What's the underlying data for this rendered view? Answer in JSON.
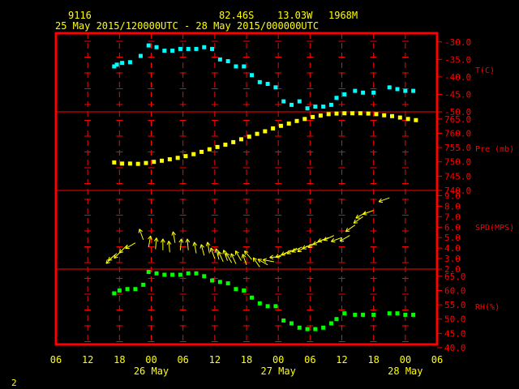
{
  "header": {
    "station": "9116",
    "lat": "82.46S",
    "lon": "13.03W",
    "elev": "1968M",
    "range": "25 May 2015/120000UTC - 28 May 2015/000000UTC"
  },
  "footer": {
    "page": "2"
  },
  "colors": {
    "frame": "#ff0000",
    "grid": "#ff0000",
    "text": "#ffff00",
    "temp": "#00ffff",
    "pres": "#ffff00",
    "wind": "#ffff00",
    "rh": "#00ff00"
  },
  "chart_data": {
    "type": "scatter",
    "x_axis": {
      "unit": "hours since 25 May 06 UTC",
      "range": [
        0,
        72
      ],
      "tick_labels": [
        "06",
        "12",
        "18",
        "00",
        "06",
        "12",
        "18",
        "00",
        "06",
        "12",
        "18",
        "00",
        "06"
      ],
      "day_labels": [
        {
          "label": "26 May",
          "at": 18
        },
        {
          "label": "27 May",
          "at": 42
        },
        {
          "label": "28 May",
          "at": 66
        }
      ]
    },
    "panels": [
      {
        "name": "T(C)",
        "range": [
          -50,
          -27.5
        ],
        "ticks": [
          -30.0,
          -35.0,
          -40.0,
          -45.0,
          -50.0
        ],
        "tick_labels": [
          "-30.0",
          "-35.0",
          "-40.0",
          "-45.0",
          "-50.0"
        ],
        "points": [
          [
            11,
            -37
          ],
          [
            11.5,
            -36.5
          ],
          [
            12.5,
            -36
          ],
          [
            14,
            -35.8
          ],
          [
            16,
            -34
          ],
          [
            17.5,
            -31
          ],
          [
            19,
            -31.5
          ],
          [
            20.5,
            -32.5
          ],
          [
            22,
            -32.5
          ],
          [
            23.5,
            -32
          ],
          [
            25,
            -32
          ],
          [
            26.5,
            -32
          ],
          [
            28,
            -31.5
          ],
          [
            29.5,
            -32
          ],
          [
            31,
            -35
          ],
          [
            32.5,
            -35.5
          ],
          [
            34,
            -37
          ],
          [
            35.5,
            -37
          ],
          [
            37,
            -39.5
          ],
          [
            38.5,
            -41.5
          ],
          [
            40,
            -42
          ],
          [
            41.5,
            -43
          ],
          [
            43,
            -47
          ],
          [
            44.5,
            -48
          ],
          [
            46,
            -47
          ],
          [
            47.5,
            -49
          ],
          [
            49,
            -48.5
          ],
          [
            50.5,
            -48.5
          ],
          [
            52,
            -48
          ],
          [
            53,
            -46
          ],
          [
            54.5,
            -45
          ],
          [
            56.5,
            -44
          ],
          [
            58,
            -44.5
          ],
          [
            60,
            -44.5
          ],
          [
            63,
            -43
          ],
          [
            64.5,
            -43.5
          ],
          [
            66,
            -44
          ],
          [
            67.5,
            -44
          ]
        ]
      },
      {
        "name": "Pre (mb)",
        "range": [
          740,
          767.5
        ],
        "ticks": [
          765.0,
          760.0,
          755.0,
          750.0,
          745.0,
          740.0
        ],
        "tick_labels": [
          "765.0",
          "760.0",
          "755.0",
          "750.0",
          "745.0",
          "740.0"
        ],
        "points": [
          [
            11,
            749.8
          ],
          [
            12.5,
            749.4
          ],
          [
            14,
            749.4
          ],
          [
            15.5,
            749.3
          ],
          [
            17,
            749.6
          ],
          [
            18.5,
            750
          ],
          [
            20,
            750.4
          ],
          [
            21.5,
            750.9
          ],
          [
            23,
            751.4
          ],
          [
            24.5,
            752
          ],
          [
            26,
            752.7
          ],
          [
            27.5,
            753.5
          ],
          [
            29,
            754.4
          ],
          [
            30.5,
            755.2
          ],
          [
            32,
            756
          ],
          [
            33.5,
            756.9
          ],
          [
            35,
            757.9
          ],
          [
            36.5,
            758.8
          ],
          [
            38,
            759.8
          ],
          [
            39.5,
            760.7
          ],
          [
            41,
            761.7
          ],
          [
            42.5,
            762.6
          ],
          [
            44,
            763.4
          ],
          [
            45.5,
            764.3
          ],
          [
            47,
            765
          ],
          [
            48.5,
            765.7
          ],
          [
            50,
            766.2
          ],
          [
            51.5,
            766.7
          ],
          [
            53,
            766.9
          ],
          [
            54.5,
            767
          ],
          [
            56,
            767
          ],
          [
            57.5,
            767
          ],
          [
            59,
            766.9
          ],
          [
            60.5,
            766.7
          ],
          [
            62,
            766.3
          ],
          [
            63.5,
            766
          ],
          [
            65,
            765.5
          ],
          [
            66.5,
            765
          ],
          [
            68,
            764.6
          ]
        ]
      },
      {
        "name": "SPD(MPS)",
        "range": [
          2.0,
          9.5
        ],
        "ticks": [
          9.0,
          8.0,
          7.0,
          6.0,
          5.0,
          4.0,
          3.0,
          2.0
        ],
        "tick_labels": [
          "9.0",
          "8.0",
          "7.0",
          "6.0",
          "5.0",
          "4.0",
          "3.0",
          "2.0"
        ],
        "points": [
          [
            11,
            3.3,
            225
          ],
          [
            11.5,
            3.5,
            230
          ],
          [
            12.5,
            3.8,
            225
          ],
          [
            13.5,
            4.3,
            225
          ],
          [
            15,
            4.5,
            240
          ],
          [
            16.5,
            4.8,
            340
          ],
          [
            17.5,
            4.1,
            10
          ],
          [
            18.8,
            3.9,
            5
          ],
          [
            20.2,
            3.8,
            0
          ],
          [
            21.5,
            3.6,
            355
          ],
          [
            22.5,
            4.5,
            350
          ],
          [
            23.5,
            3.8,
            5
          ],
          [
            25,
            3.8,
            355
          ],
          [
            26.5,
            3.5,
            350
          ],
          [
            28,
            3.3,
            345
          ],
          [
            29,
            3.5,
            350
          ],
          [
            30,
            3.0,
            340
          ],
          [
            30.8,
            2.9,
            345
          ],
          [
            31.6,
            2.7,
            335
          ],
          [
            32.4,
            2.8,
            340
          ],
          [
            33.2,
            2.6,
            330
          ],
          [
            34,
            2.5,
            335
          ],
          [
            35,
            2.8,
            330
          ],
          [
            36,
            2.4,
            340
          ],
          [
            37,
            2.9,
            320
          ],
          [
            38.5,
            2.2,
            325
          ],
          [
            40,
            2.4,
            300
          ],
          [
            41.2,
            2.7,
            280
          ],
          [
            42.5,
            3.2,
            265
          ],
          [
            43.5,
            3.5,
            250
          ],
          [
            44.5,
            3.8,
            245
          ],
          [
            45.5,
            4.0,
            240
          ],
          [
            46.5,
            4.1,
            245
          ],
          [
            47.5,
            4.2,
            240
          ],
          [
            48.5,
            4.4,
            245
          ],
          [
            49.5,
            4.6,
            240
          ],
          [
            50.5,
            4.8,
            245
          ],
          [
            51.5,
            5.0,
            250
          ],
          [
            52.5,
            5.2,
            245
          ],
          [
            54,
            5.0,
            250
          ],
          [
            55.5,
            5.2,
            240
          ],
          [
            56.5,
            6.2,
            235
          ],
          [
            58,
            7.0,
            235
          ],
          [
            58.5,
            7.4,
            240
          ],
          [
            60,
            7.6,
            250
          ],
          [
            63,
            8.8,
            250
          ]
        ]
      },
      {
        "name": "RH(%)",
        "range": [
          40,
          67.5
        ],
        "ticks": [
          65.0,
          60.0,
          55.0,
          50.0,
          45.0,
          40.0
        ],
        "tick_labels": [
          "65.0",
          "60.0",
          "55.0",
          "50.0",
          "45.0",
          "40.0"
        ],
        "points": [
          [
            11,
            59
          ],
          [
            12,
            60
          ],
          [
            13.5,
            60.5
          ],
          [
            15,
            60.5
          ],
          [
            16.5,
            62
          ],
          [
            17.5,
            66.5
          ],
          [
            19,
            66
          ],
          [
            20.5,
            65.5
          ],
          [
            22,
            65.5
          ],
          [
            23.5,
            65.5
          ],
          [
            25,
            66
          ],
          [
            26.5,
            66
          ],
          [
            28,
            65
          ],
          [
            29.5,
            63.5
          ],
          [
            31,
            63
          ],
          [
            32.5,
            62.5
          ],
          [
            34,
            60.5
          ],
          [
            35.5,
            60
          ],
          [
            37,
            57.5
          ],
          [
            38.5,
            55.5
          ],
          [
            40,
            54.5
          ],
          [
            41.5,
            54.5
          ],
          [
            43,
            49.5
          ],
          [
            44.5,
            48.5
          ],
          [
            46,
            47
          ],
          [
            47.5,
            46.5
          ],
          [
            49,
            46.5
          ],
          [
            50.5,
            47
          ],
          [
            52,
            48.5
          ],
          [
            53,
            50
          ],
          [
            54.5,
            52
          ],
          [
            56.5,
            51.5
          ],
          [
            58,
            51.5
          ],
          [
            60,
            51.5
          ],
          [
            63,
            52
          ],
          [
            64.5,
            52
          ],
          [
            66,
            51.5
          ],
          [
            67.5,
            51.5
          ]
        ]
      }
    ]
  }
}
